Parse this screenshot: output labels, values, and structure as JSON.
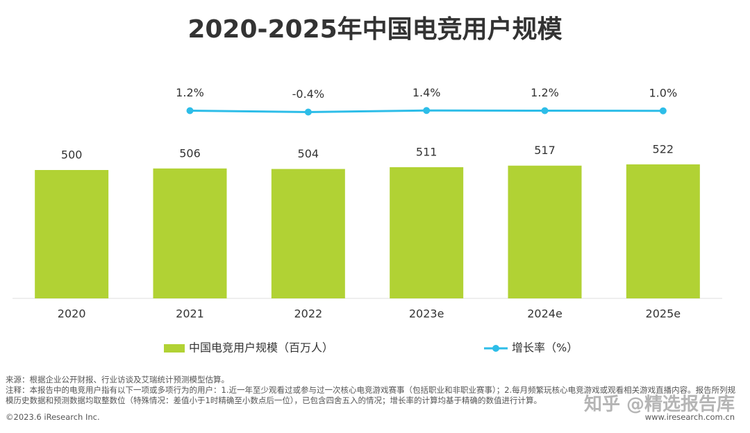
{
  "chart_data": {
    "type": "bar",
    "title": "2020-2025年中国电竞用户规模",
    "categories": [
      "2020",
      "2021",
      "2022",
      "2023e",
      "2024e",
      "2025e"
    ],
    "series": [
      {
        "name": "中国电竞用户规模（百万人）",
        "color": "#b1d234",
        "values": [
          500,
          506,
          504,
          511,
          517,
          522
        ]
      },
      {
        "name": "增长率（%）",
        "color": "#2dbde8",
        "type": "line",
        "axis": "y2",
        "values": [
          null,
          1.2,
          -0.4,
          1.4,
          1.2,
          1.0
        ],
        "value_labels": [
          null,
          "1.2%",
          "-0.4%",
          "1.4%",
          "1.2%",
          "1.0%"
        ]
      }
    ],
    "ylim": [
      0,
      700
    ],
    "y2lim": [
      -60,
      60
    ]
  },
  "source": "来源：根据企业公开财报、行业访谈及艾瑞统计预测模型估算。",
  "note": "注释：本报告中的电竞用户指有以下一项或多项行为的用户：1.近一年至少观看过或参与过一次核心电竞游戏赛事（包括职业和非职业赛事）；2.每月频繁玩核心电竞游戏或观看相关游戏直播内容。报告所列规模历史数据和预测数据均取整数位（特殊情况：差值小于1时精确至小数点后一位），已包含四舍五入的情况；增长率的计算均基于精确的数值进行计算。",
  "copyright": "©2023.6 iResearch Inc.",
  "website": "www.iresearch.com.cn",
  "watermark": "知乎 @精选报告库"
}
